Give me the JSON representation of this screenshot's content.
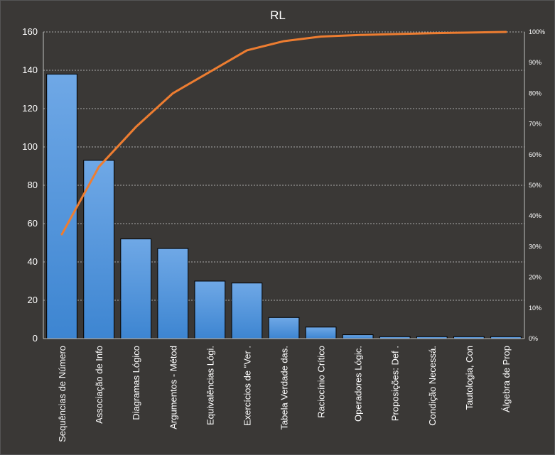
{
  "chart_data": {
    "type": "bar",
    "title": "RL",
    "categories": [
      "Sequências de Número",
      "Associação de Info",
      "Diagramas Lógico",
      "Argumentos - Métod",
      "Equivalências Lógi.",
      "Exercícios de \"Ver .",
      "Tabela Verdade das.",
      "Raciocínio Crítico",
      "Operadores Lógic.",
      "Proposições: Def .",
      "Condição Necessá.",
      "Tautologia, Con",
      "Álgebra de Prop"
    ],
    "series": [
      {
        "type": "bar",
        "axis": "left",
        "values": [
          138,
          93,
          52,
          47,
          30,
          29,
          11,
          6,
          2,
          1,
          1,
          1,
          1
        ]
      },
      {
        "type": "line",
        "axis": "right",
        "values": [
          0.34,
          0.56,
          0.69,
          0.8,
          0.87,
          0.94,
          0.97,
          0.985,
          0.99,
          0.993,
          0.996,
          0.998,
          1.0
        ]
      }
    ],
    "ylim": [
      0,
      160
    ],
    "yticks": [
      "0",
      "20",
      "40",
      "60",
      "80",
      "100",
      "120",
      "140",
      "160"
    ],
    "y2lim": [
      0,
      1
    ],
    "y2ticks": [
      "0%",
      "10%",
      "20%",
      "30%",
      "40%",
      "50%",
      "60%",
      "70%",
      "80%",
      "90%",
      "100%"
    ],
    "grid": true,
    "legend": "none",
    "colors": {
      "background": "#3a3836",
      "bar": "#4a90d9",
      "line": "#ed7d31",
      "grid": "#d0d0d0",
      "text": "#ffffff"
    }
  }
}
